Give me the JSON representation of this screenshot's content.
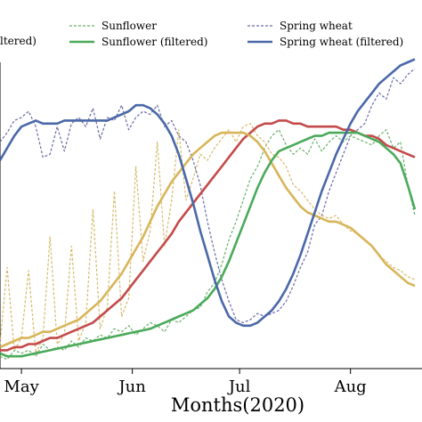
{
  "chart_data": {
    "type": "line",
    "title": "",
    "xlabel": "Months(2020)",
    "ylabel": "",
    "x_ticks": [
      {
        "label": "May",
        "day": 0
      },
      {
        "label": "Jun",
        "day": 31
      },
      {
        "label": "Jul",
        "day": 61
      },
      {
        "label": "Aug",
        "day": 92
      }
    ],
    "xlim": [
      -6,
      112
    ],
    "ylim": [
      0,
      1
    ],
    "grid": false,
    "legend_placement": "top",
    "legend": [
      {
        "label": "ltered)",
        "series": "filtered-red"
      },
      {
        "label": "Sunflower",
        "series": "sunflower-raw"
      },
      {
        "label": "Sunflower (filtered)",
        "series": "sunflower-filtered"
      },
      {
        "label": "Spring wheat",
        "series": "wheat-raw"
      },
      {
        "label": "Spring wheat (filtered)",
        "series": "wheat-filtered"
      }
    ],
    "series": [
      {
        "key": "wheat-raw",
        "name": "Spring wheat",
        "color": "#6a6aa8",
        "style": "dashed",
        "x": [
          -6,
          -4,
          -2,
          0,
          2,
          4,
          6,
          8,
          10,
          12,
          14,
          16,
          18,
          20,
          22,
          24,
          26,
          28,
          30,
          32,
          34,
          36,
          38,
          40,
          42,
          44,
          46,
          48,
          50,
          52,
          54,
          56,
          58,
          60,
          62,
          64,
          66,
          68,
          70,
          72,
          74,
          76,
          78,
          80,
          82,
          84,
          86,
          88,
          90,
          92,
          94,
          96,
          98,
          100,
          102,
          104,
          106,
          108,
          110
        ],
        "y": [
          0.74,
          0.77,
          0.81,
          0.82,
          0.84,
          0.79,
          0.69,
          0.7,
          0.79,
          0.71,
          0.8,
          0.82,
          0.79,
          0.85,
          0.75,
          0.82,
          0.81,
          0.86,
          0.78,
          0.82,
          0.84,
          0.83,
          0.86,
          0.79,
          0.81,
          0.76,
          0.74,
          0.68,
          0.6,
          0.48,
          0.38,
          0.29,
          0.22,
          0.16,
          0.15,
          0.16,
          0.18,
          0.17,
          0.18,
          0.19,
          0.22,
          0.27,
          0.33,
          0.38,
          0.47,
          0.5,
          0.58,
          0.64,
          0.7,
          0.76,
          0.78,
          0.8,
          0.86,
          0.9,
          0.88,
          0.95,
          0.93,
          0.96,
          0.98
        ]
      },
      {
        "key": "wheat-filtered",
        "name": "Spring wheat (filtered)",
        "color": "#4a68a8",
        "style": "solid",
        "x": [
          -6,
          -4,
          -2,
          0,
          2,
          4,
          6,
          8,
          10,
          12,
          14,
          16,
          18,
          20,
          22,
          24,
          26,
          28,
          30,
          32,
          34,
          36,
          38,
          40,
          42,
          44,
          46,
          48,
          50,
          52,
          54,
          56,
          58,
          60,
          62,
          64,
          66,
          68,
          70,
          72,
          74,
          76,
          78,
          80,
          82,
          84,
          86,
          88,
          90,
          92,
          94,
          96,
          98,
          100,
          102,
          104,
          106,
          108,
          110
        ],
        "y": [
          0.68,
          0.72,
          0.76,
          0.79,
          0.8,
          0.81,
          0.8,
          0.8,
          0.8,
          0.81,
          0.81,
          0.81,
          0.81,
          0.81,
          0.81,
          0.81,
          0.82,
          0.83,
          0.84,
          0.86,
          0.86,
          0.85,
          0.83,
          0.8,
          0.76,
          0.7,
          0.62,
          0.54,
          0.45,
          0.37,
          0.29,
          0.22,
          0.17,
          0.15,
          0.14,
          0.14,
          0.15,
          0.17,
          0.19,
          0.22,
          0.26,
          0.31,
          0.37,
          0.44,
          0.51,
          0.58,
          0.64,
          0.7,
          0.75,
          0.8,
          0.84,
          0.87,
          0.9,
          0.93,
          0.95,
          0.97,
          0.99,
          1.0,
          1.01
        ]
      },
      {
        "key": "sunflower-raw",
        "name": "Sunflower",
        "color": "#6bb06b",
        "style": "dashed",
        "x": [
          -6,
          -4,
          -2,
          0,
          2,
          4,
          6,
          8,
          10,
          12,
          14,
          16,
          18,
          20,
          22,
          24,
          26,
          28,
          30,
          32,
          34,
          36,
          38,
          40,
          42,
          44,
          46,
          48,
          50,
          52,
          54,
          56,
          58,
          60,
          62,
          64,
          66,
          68,
          70,
          72,
          74,
          76,
          78,
          80,
          82,
          84,
          86,
          88,
          90,
          92,
          94,
          96,
          98,
          100,
          102,
          104,
          106,
          108,
          110
        ],
        "y": [
          0.04,
          0.03,
          0.06,
          0.05,
          0.06,
          0.04,
          0.08,
          0.06,
          0.07,
          0.06,
          0.09,
          0.07,
          0.1,
          0.09,
          0.11,
          0.1,
          0.13,
          0.12,
          0.14,
          0.11,
          0.13,
          0.15,
          0.14,
          0.12,
          0.16,
          0.15,
          0.17,
          0.19,
          0.2,
          0.25,
          0.28,
          0.34,
          0.42,
          0.48,
          0.55,
          0.62,
          0.66,
          0.72,
          0.76,
          0.78,
          0.73,
          0.7,
          0.72,
          0.7,
          0.75,
          0.71,
          0.74,
          0.76,
          0.74,
          0.76,
          0.75,
          0.74,
          0.73,
          0.76,
          0.78,
          0.72,
          0.74,
          0.6,
          0.5
        ]
      },
      {
        "key": "sunflower-filtered",
        "name": "Sunflower (filtered)",
        "color": "#4aaa5a",
        "style": "solid",
        "x": [
          -6,
          -4,
          -2,
          0,
          2,
          4,
          6,
          8,
          10,
          12,
          14,
          16,
          18,
          20,
          22,
          24,
          26,
          28,
          30,
          32,
          34,
          36,
          38,
          40,
          42,
          44,
          46,
          48,
          50,
          52,
          54,
          56,
          58,
          60,
          62,
          64,
          66,
          68,
          70,
          72,
          74,
          76,
          78,
          80,
          82,
          84,
          86,
          88,
          90,
          92,
          94,
          96,
          98,
          100,
          102,
          104,
          106,
          108,
          110
        ],
        "y": [
          0.05,
          0.04,
          0.04,
          0.04,
          0.045,
          0.05,
          0.055,
          0.06,
          0.065,
          0.07,
          0.075,
          0.08,
          0.085,
          0.09,
          0.095,
          0.1,
          0.105,
          0.11,
          0.115,
          0.12,
          0.125,
          0.13,
          0.14,
          0.15,
          0.16,
          0.17,
          0.18,
          0.19,
          0.21,
          0.23,
          0.26,
          0.3,
          0.35,
          0.41,
          0.47,
          0.53,
          0.59,
          0.64,
          0.68,
          0.71,
          0.72,
          0.73,
          0.74,
          0.75,
          0.76,
          0.76,
          0.77,
          0.77,
          0.77,
          0.77,
          0.77,
          0.76,
          0.75,
          0.74,
          0.72,
          0.7,
          0.67,
          0.6,
          0.52
        ]
      },
      {
        "key": "filtered-red",
        "name": "ltered)",
        "color": "#c44a4a",
        "style": "solid",
        "x": [
          -6,
          -4,
          -2,
          0,
          2,
          4,
          6,
          8,
          10,
          12,
          14,
          16,
          18,
          20,
          22,
          24,
          26,
          28,
          30,
          32,
          34,
          36,
          38,
          40,
          42,
          44,
          46,
          48,
          50,
          52,
          54,
          56,
          58,
          60,
          62,
          64,
          66,
          68,
          70,
          72,
          74,
          76,
          78,
          80,
          82,
          84,
          86,
          88,
          90,
          92,
          94,
          96,
          98,
          100,
          102,
          104,
          106,
          108,
          110
        ],
        "y": [
          0.06,
          0.06,
          0.07,
          0.07,
          0.08,
          0.08,
          0.09,
          0.1,
          0.1,
          0.11,
          0.12,
          0.13,
          0.14,
          0.15,
          0.17,
          0.19,
          0.21,
          0.23,
          0.26,
          0.29,
          0.32,
          0.35,
          0.38,
          0.41,
          0.44,
          0.48,
          0.51,
          0.54,
          0.57,
          0.6,
          0.63,
          0.66,
          0.69,
          0.72,
          0.75,
          0.77,
          0.79,
          0.8,
          0.8,
          0.81,
          0.81,
          0.8,
          0.8,
          0.79,
          0.79,
          0.79,
          0.79,
          0.79,
          0.78,
          0.78,
          0.77,
          0.76,
          0.76,
          0.75,
          0.73,
          0.72,
          0.71,
          0.7,
          0.69
        ]
      },
      {
        "key": "yellow-raw",
        "name": "",
        "color": "#d6b96a",
        "style": "dashed",
        "x": [
          -6,
          -4,
          -2,
          0,
          2,
          4,
          6,
          8,
          10,
          12,
          14,
          16,
          18,
          20,
          22,
          24,
          26,
          28,
          30,
          32,
          34,
          36,
          38,
          40,
          42,
          44,
          46,
          48,
          50,
          52,
          54,
          56,
          58,
          60,
          62,
          64,
          66,
          68,
          70,
          72,
          74,
          76,
          78,
          80,
          82,
          84,
          86,
          88,
          90,
          92,
          94,
          96,
          98,
          100,
          102,
          104,
          106,
          108,
          110
        ],
        "y": [
          0.08,
          0.33,
          0.06,
          0.1,
          0.32,
          0.05,
          0.1,
          0.43,
          0.08,
          0.11,
          0.4,
          0.09,
          0.15,
          0.52,
          0.13,
          0.2,
          0.58,
          0.17,
          0.23,
          0.66,
          0.35,
          0.45,
          0.74,
          0.4,
          0.55,
          0.78,
          0.55,
          0.62,
          0.7,
          0.68,
          0.72,
          0.75,
          0.78,
          0.74,
          0.79,
          0.8,
          0.76,
          0.74,
          0.7,
          0.69,
          0.66,
          0.6,
          0.58,
          0.55,
          0.52,
          0.5,
          0.49,
          0.5,
          0.47,
          0.45,
          0.44,
          0.42,
          0.4,
          0.37,
          0.35,
          0.33,
          0.32,
          0.3,
          0.29
        ]
      },
      {
        "key": "yellow-filtered",
        "name": "",
        "color": "#d8b559",
        "style": "solid",
        "x": [
          -6,
          -4,
          -2,
          0,
          2,
          4,
          6,
          8,
          10,
          12,
          14,
          16,
          18,
          20,
          22,
          24,
          26,
          28,
          30,
          32,
          34,
          36,
          38,
          40,
          42,
          44,
          46,
          48,
          50,
          52,
          54,
          56,
          58,
          60,
          62,
          64,
          66,
          68,
          70,
          72,
          74,
          76,
          78,
          80,
          82,
          84,
          86,
          88,
          90,
          92,
          94,
          96,
          98,
          100,
          102,
          104,
          106,
          108,
          110
        ],
        "y": [
          0.07,
          0.08,
          0.09,
          0.1,
          0.1,
          0.11,
          0.12,
          0.12,
          0.13,
          0.14,
          0.15,
          0.16,
          0.18,
          0.2,
          0.22,
          0.25,
          0.28,
          0.31,
          0.35,
          0.39,
          0.43,
          0.48,
          0.53,
          0.57,
          0.61,
          0.64,
          0.67,
          0.7,
          0.72,
          0.74,
          0.76,
          0.77,
          0.77,
          0.77,
          0.77,
          0.76,
          0.74,
          0.71,
          0.67,
          0.63,
          0.59,
          0.56,
          0.53,
          0.51,
          0.5,
          0.49,
          0.48,
          0.48,
          0.47,
          0.46,
          0.44,
          0.42,
          0.4,
          0.37,
          0.34,
          0.32,
          0.3,
          0.28,
          0.27
        ]
      }
    ]
  }
}
